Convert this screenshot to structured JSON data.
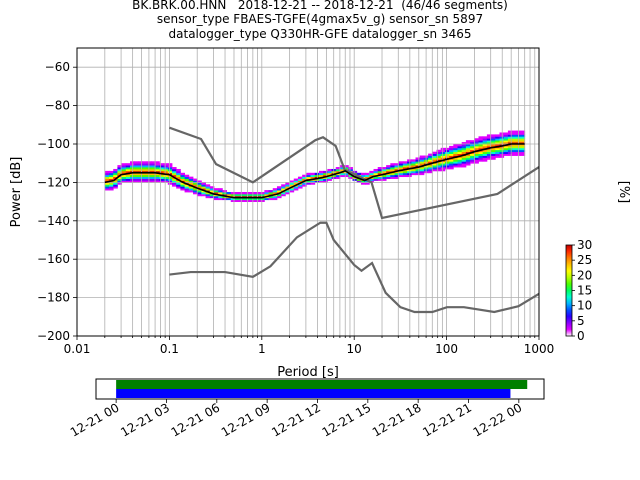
{
  "figure": {
    "title_lines": [
      "BK.BRK.00.HNN   2018-12-21 -- 2018-12-21  (46/46 segments)",
      "sensor_type FBAES-TGFE(4gmax5v_g) sensor_sn 5897",
      "datalogger_type Q330HR-GFE datalogger_sn 3465"
    ]
  },
  "chart_data": [
    {
      "type": "heatmap",
      "xlabel": "Period [s]",
      "ylabel": "Power [dB]",
      "xscale": "log",
      "xlim": [
        0.01,
        1000
      ],
      "ylim": [
        -200,
        -50
      ],
      "xticks": [
        0.01,
        0.1,
        1,
        10,
        100,
        1000
      ],
      "xtick_labels": [
        "0.01",
        "0.1",
        "1",
        "10",
        "100",
        "1000"
      ],
      "yticks": [
        -60,
        -80,
        -100,
        -120,
        -140,
        -160,
        -180,
        -200
      ],
      "ytick_labels": [
        "−60",
        "−80",
        "−100",
        "−120",
        "−140",
        "−160",
        "−180",
        "−200"
      ],
      "grid": true,
      "colorbar": {
        "label": "[%]",
        "range": [
          0,
          30
        ],
        "ticks": [
          0,
          5,
          10,
          15,
          20,
          25,
          30
        ],
        "tick_labels": [
          "0",
          "5",
          "10",
          "15",
          "20",
          "25",
          "30"
        ],
        "colormap": [
          "#ffffff",
          "#e100ff",
          "#8a00ff",
          "#2a00ff",
          "#0050ff",
          "#00b4ff",
          "#00ffd0",
          "#00ff60",
          "#4bff00",
          "#b4ff00",
          "#ffff00",
          "#ffc000",
          "#ff7a00",
          "#ff2a00",
          "#c00000"
        ]
      },
      "psd_band": {
        "period": [
          0.02,
          0.025,
          0.03,
          0.04,
          0.05,
          0.07,
          0.1,
          0.14,
          0.2,
          0.3,
          0.5,
          0.7,
          1,
          1.5,
          2,
          3,
          4,
          5,
          7,
          8,
          10,
          13,
          16,
          20,
          30,
          50,
          70,
          100,
          150,
          200,
          300,
          400,
          500,
          700
        ],
        "power": [
          -120,
          -119,
          -116,
          -115,
          -115,
          -115,
          -116,
          -120,
          -123,
          -126,
          -128,
          -128,
          -128,
          -126,
          -123,
          -119,
          -118,
          -117,
          -115,
          -114,
          -117,
          -119,
          -117,
          -116,
          -114,
          -112,
          -110,
          -108,
          -106,
          -104,
          -102,
          -101,
          -100,
          -100
        ],
        "spread": [
          4,
          4,
          4,
          4,
          4,
          4,
          4,
          3.5,
          3,
          2,
          1.5,
          1.5,
          1.5,
          2,
          2,
          2,
          2,
          2,
          2,
          2,
          2,
          2,
          2,
          2.5,
          3,
          3.5,
          4,
          4.5,
          5,
          5,
          5,
          5,
          5,
          5
        ]
      },
      "mean_curve": {
        "color": "#000000",
        "period": [
          0.02,
          0.025,
          0.03,
          0.04,
          0.05,
          0.07,
          0.1,
          0.14,
          0.2,
          0.3,
          0.5,
          0.7,
          1,
          1.5,
          2,
          3,
          4,
          5,
          7,
          8,
          10,
          13,
          16,
          20,
          30,
          50,
          70,
          100,
          150,
          200,
          300,
          400,
          500,
          700
        ],
        "power": [
          -120,
          -119,
          -116,
          -115,
          -115,
          -115,
          -116,
          -120,
          -123,
          -126,
          -128,
          -128,
          -128,
          -126,
          -123,
          -119,
          -118,
          -117,
          -115,
          -114,
          -117,
          -119,
          -117,
          -116,
          -114,
          -112,
          -110,
          -108,
          -106,
          -104,
          -102,
          -101,
          -100,
          -100
        ]
      },
      "noise_models": {
        "color": "#666666",
        "high": {
          "period": [
            0.1,
            0.22,
            0.32,
            0.8,
            3.8,
            4.6,
            6.3,
            7.9,
            15.4,
            20,
            354.8,
            1000
          ],
          "power": [
            -91.5,
            -97.4,
            -110.5,
            -120,
            -98,
            -96.5,
            -101,
            -113.5,
            -120,
            -138.5,
            -126,
            -112
          ]
        },
        "low": {
          "period": [
            0.1,
            0.17,
            0.4,
            0.8,
            1.24,
            2.4,
            4.3,
            5,
            6,
            10,
            12,
            15.6,
            21.9,
            31.6,
            45,
            70,
            101,
            154,
            328,
            600,
            1000
          ],
          "power": [
            -168,
            -166.7,
            -166.7,
            -169.2,
            -163.7,
            -148.6,
            -141,
            -141,
            -150,
            -163,
            -166,
            -162,
            -177.5,
            -185,
            -187.5,
            -187.5,
            -185,
            -185,
            -187.5,
            -184.5,
            -178
          ]
        }
      }
    },
    {
      "type": "timeline",
      "tick_labels": [
        "12-21 00",
        "12-21 03",
        "12-21 06",
        "12-21 09",
        "12-21 12",
        "12-21 15",
        "12-21 18",
        "12-21 21",
        "12-22 00"
      ],
      "tick_hours": [
        0,
        3,
        6,
        9,
        12,
        15,
        18,
        21,
        24
      ],
      "xlim_hours": [
        -1.2,
        25.5
      ],
      "bars": [
        {
          "name": "",
          "color": "#008000",
          "start_hour": 0,
          "end_hour": 24.5
        },
        {
          "name": "",
          "color": "#0000ff",
          "start_hour": 0,
          "end_hour": 23.5
        }
      ]
    }
  ]
}
